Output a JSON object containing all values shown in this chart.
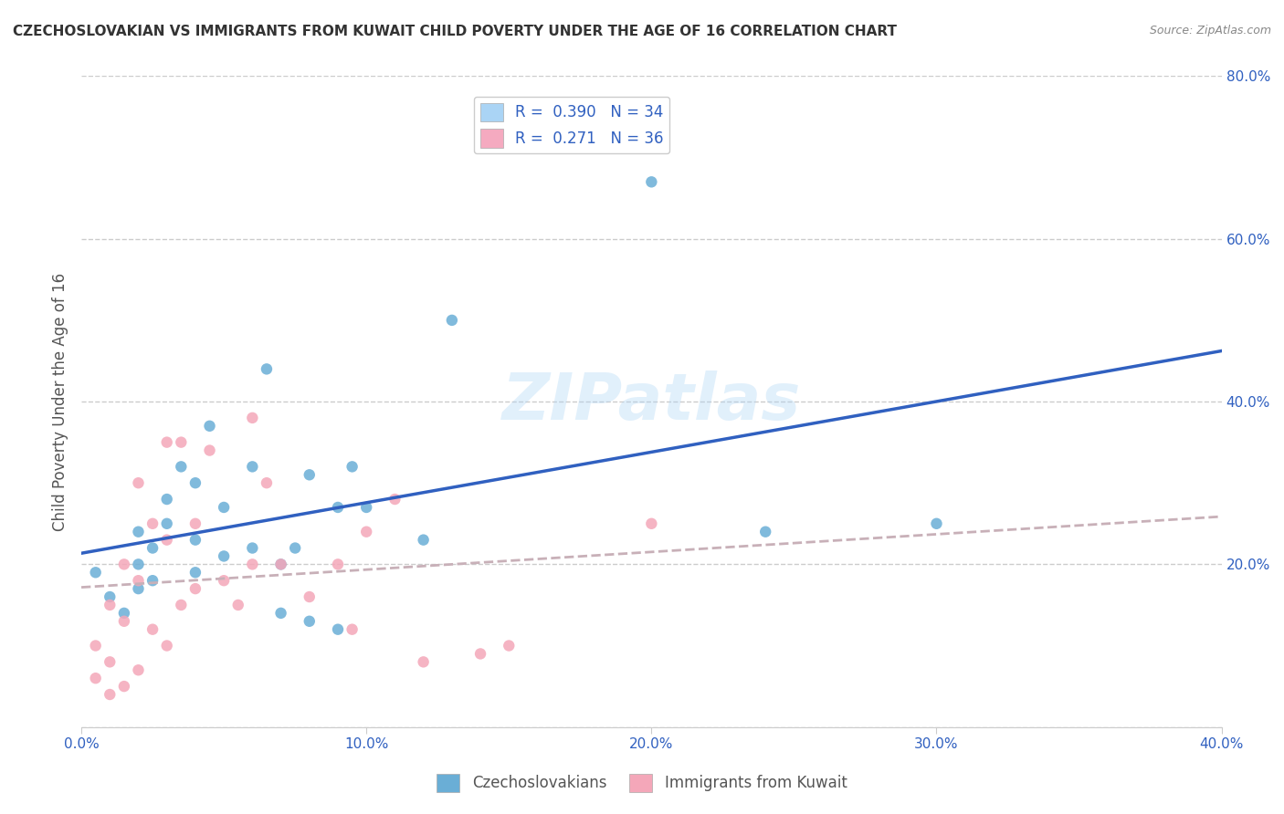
{
  "title": "CZECHOSLOVAKIAN VS IMMIGRANTS FROM KUWAIT CHILD POVERTY UNDER THE AGE OF 16 CORRELATION CHART",
  "source": "Source: ZipAtlas.com",
  "xlabel": "",
  "ylabel": "Child Poverty Under the Age of 16",
  "xlim": [
    0.0,
    0.4
  ],
  "ylim": [
    0.0,
    0.8
  ],
  "xticks": [
    0.0,
    0.1,
    0.2,
    0.3,
    0.4
  ],
  "yticks": [
    0.0,
    0.2,
    0.4,
    0.6,
    0.8
  ],
  "xtick_labels": [
    "0.0%",
    "10.0%",
    "20.0%",
    "30.0%",
    "40.0%"
  ],
  "ytick_labels": [
    "",
    "20.0%",
    "40.0%",
    "60.0%",
    "80.0%"
  ],
  "background_color": "#ffffff",
  "watermark": "ZIPatlas",
  "legend_label1": "R =  0.390   N = 34",
  "legend_label2": "R =  0.271   N = 36",
  "legend_color1": "#aad4f5",
  "legend_color2": "#f5aac0",
  "series1_color": "#6aaed6",
  "series2_color": "#f4a7b9",
  "series1_line_color": "#3060c0",
  "series2_line_color": "#c8b0b8",
  "bottom_label1": "Czechoslovakians",
  "bottom_label2": "Immigrants from Kuwait",
  "czechoslovakian_x": [
    0.005,
    0.01,
    0.015,
    0.02,
    0.02,
    0.02,
    0.025,
    0.025,
    0.03,
    0.03,
    0.035,
    0.04,
    0.04,
    0.04,
    0.045,
    0.05,
    0.05,
    0.06,
    0.06,
    0.065,
    0.07,
    0.07,
    0.075,
    0.08,
    0.08,
    0.09,
    0.09,
    0.095,
    0.1,
    0.12,
    0.13,
    0.2,
    0.24,
    0.3
  ],
  "czechoslovakian_y": [
    0.19,
    0.16,
    0.14,
    0.17,
    0.2,
    0.24,
    0.18,
    0.22,
    0.25,
    0.28,
    0.32,
    0.19,
    0.23,
    0.3,
    0.37,
    0.21,
    0.27,
    0.22,
    0.32,
    0.44,
    0.14,
    0.2,
    0.22,
    0.13,
    0.31,
    0.12,
    0.27,
    0.32,
    0.27,
    0.23,
    0.5,
    0.67,
    0.24,
    0.25
  ],
  "kuwait_x": [
    0.005,
    0.005,
    0.01,
    0.01,
    0.01,
    0.015,
    0.015,
    0.015,
    0.02,
    0.02,
    0.02,
    0.025,
    0.025,
    0.03,
    0.03,
    0.03,
    0.035,
    0.035,
    0.04,
    0.04,
    0.045,
    0.05,
    0.055,
    0.06,
    0.06,
    0.065,
    0.07,
    0.08,
    0.09,
    0.095,
    0.1,
    0.11,
    0.12,
    0.14,
    0.15,
    0.2
  ],
  "kuwait_y": [
    0.06,
    0.1,
    0.04,
    0.08,
    0.15,
    0.05,
    0.13,
    0.2,
    0.07,
    0.18,
    0.3,
    0.12,
    0.25,
    0.1,
    0.23,
    0.35,
    0.15,
    0.35,
    0.17,
    0.25,
    0.34,
    0.18,
    0.15,
    0.2,
    0.38,
    0.3,
    0.2,
    0.16,
    0.2,
    0.12,
    0.24,
    0.28,
    0.08,
    0.09,
    0.1,
    0.25
  ]
}
